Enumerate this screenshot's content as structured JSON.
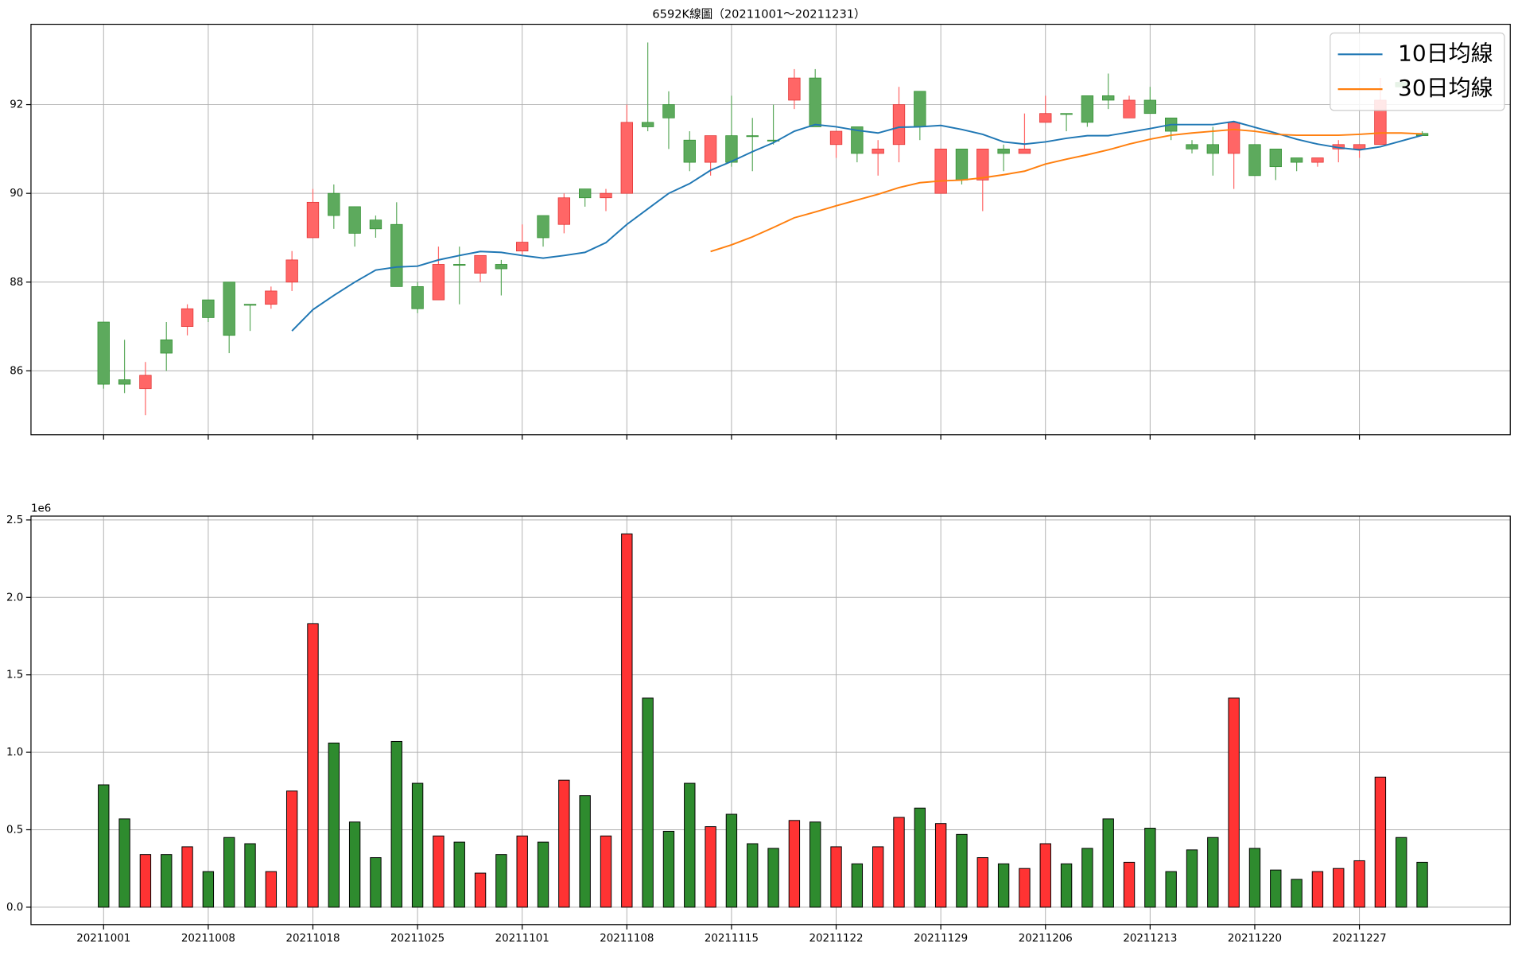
{
  "chart_data": [
    {
      "type": "candlestick",
      "title": "6592K線圖（20211001～20211231）",
      "open": [
        87.1,
        85.8,
        85.6,
        86.7,
        87.0,
        87.6,
        88.0,
        87.5,
        87.5,
        88.0,
        89.0,
        90.0,
        89.7,
        89.4,
        89.3,
        87.9,
        87.6,
        88.4,
        88.2,
        88.4,
        88.7,
        89.5,
        89.3,
        90.1,
        89.9,
        90.0,
        91.6,
        92.0,
        91.2,
        90.7,
        91.3,
        91.3,
        91.2,
        92.1,
        92.6,
        91.1,
        91.5,
        90.9,
        91.1,
        92.3,
        90.0,
        91.0,
        90.3,
        91.0,
        90.9,
        91.6,
        91.8,
        92.2,
        92.2,
        91.7,
        92.1,
        91.7,
        91.1,
        91.1,
        90.9,
        91.1,
        91.0,
        90.8,
        90.7,
        91.0,
        91.0,
        91.1,
        92.5,
        91.35
      ],
      "high": [
        87.1,
        86.7,
        86.2,
        87.1,
        87.5,
        87.6,
        88.0,
        87.5,
        87.9,
        88.7,
        90.1,
        90.2,
        89.7,
        89.5,
        89.8,
        88.0,
        88.8,
        88.8,
        88.6,
        88.5,
        89.3,
        89.5,
        90.0,
        90.1,
        90.1,
        92.0,
        93.4,
        92.3,
        91.4,
        91.3,
        92.2,
        91.7,
        92.0,
        92.8,
        92.8,
        91.4,
        91.5,
        91.2,
        92.4,
        92.3,
        91.0,
        91.0,
        91.0,
        91.1,
        91.8,
        92.2,
        91.8,
        92.2,
        92.7,
        92.2,
        92.4,
        91.7,
        91.2,
        91.5,
        91.6,
        91.1,
        91.0,
        90.8,
        90.8,
        91.2,
        91.1,
        92.6,
        92.5,
        91.4
      ],
      "low": [
        85.6,
        85.5,
        85.0,
        86.0,
        86.8,
        87.1,
        86.4,
        86.9,
        87.4,
        87.8,
        89.0,
        89.2,
        88.8,
        89.0,
        87.9,
        87.3,
        87.6,
        87.5,
        88.0,
        87.7,
        88.6,
        88.8,
        89.1,
        89.7,
        89.6,
        90.0,
        91.4,
        91.0,
        90.5,
        90.4,
        90.6,
        90.5,
        91.1,
        91.9,
        91.5,
        90.8,
        90.7,
        90.4,
        90.7,
        91.2,
        90.0,
        90.2,
        89.6,
        90.5,
        90.9,
        91.6,
        91.4,
        91.5,
        91.9,
        91.7,
        91.8,
        91.2,
        90.9,
        90.4,
        90.1,
        90.4,
        90.3,
        90.5,
        90.6,
        90.7,
        90.8,
        91.1,
        92.4,
        91.3
      ],
      "close": [
        85.7,
        85.7,
        85.9,
        86.4,
        87.4,
        87.2,
        86.8,
        87.5,
        87.8,
        88.5,
        89.8,
        89.5,
        89.1,
        89.2,
        87.9,
        87.4,
        88.4,
        88.4,
        88.6,
        88.3,
        88.9,
        89.0,
        89.9,
        89.9,
        90.0,
        91.6,
        91.5,
        91.7,
        90.7,
        91.3,
        90.7,
        91.3,
        91.2,
        92.6,
        91.5,
        91.4,
        90.9,
        91.0,
        92.0,
        91.5,
        91.0,
        90.3,
        91.0,
        90.9,
        91.0,
        91.8,
        91.8,
        91.6,
        92.1,
        92.1,
        91.8,
        91.4,
        91.0,
        90.9,
        91.6,
        90.4,
        90.6,
        90.7,
        90.8,
        91.1,
        91.1,
        92.1,
        92.4,
        91.3
      ],
      "up_color": "#ff6666",
      "down_color": "#5daa5d",
      "series": [
        {
          "name": "10日均線",
          "color": "#1f77b4",
          "values": [
            null,
            null,
            null,
            null,
            null,
            null,
            null,
            null,
            null,
            86.9,
            87.38,
            87.7,
            88.0,
            88.27,
            88.34,
            88.36,
            88.5,
            88.6,
            88.69,
            88.67,
            88.6,
            88.54,
            88.6,
            88.67,
            88.89,
            89.3,
            89.65,
            90.0,
            90.22,
            90.52,
            90.72,
            90.94,
            91.14,
            91.4,
            91.55,
            91.5,
            91.42,
            91.36,
            91.49,
            91.5,
            91.53,
            91.44,
            91.33,
            91.16,
            91.11,
            91.16,
            91.24,
            91.3,
            91.3,
            91.38,
            91.46,
            91.55,
            91.55,
            91.55,
            91.62,
            91.49,
            91.36,
            91.22,
            91.11,
            91.03,
            90.98,
            91.05,
            91.18,
            91.31
          ]
        },
        {
          "name": "30日均線",
          "color": "#ff7f0e",
          "values": [
            null,
            null,
            null,
            null,
            null,
            null,
            null,
            null,
            null,
            null,
            null,
            null,
            null,
            null,
            null,
            null,
            null,
            null,
            null,
            null,
            null,
            null,
            null,
            null,
            null,
            null,
            null,
            null,
            null,
            88.69,
            88.84,
            89.02,
            89.23,
            89.45,
            89.58,
            89.72,
            89.85,
            89.98,
            90.13,
            90.24,
            90.28,
            90.3,
            90.35,
            90.42,
            90.5,
            90.66,
            90.77,
            90.87,
            90.98,
            91.11,
            91.22,
            91.31,
            91.36,
            91.4,
            91.44,
            91.4,
            91.33,
            91.31,
            91.31,
            91.31,
            91.33,
            91.36,
            91.36,
            91.34
          ]
        }
      ],
      "ylim": [
        84.56,
        93.81
      ],
      "yticks": [
        86,
        88,
        90,
        92
      ],
      "grid": true,
      "legend": "upper right"
    },
    {
      "type": "bar",
      "offset_label": "1e6",
      "categories": [
        "20211001",
        null,
        null,
        null,
        null,
        "20211008",
        null,
        null,
        null,
        null,
        "20211018",
        null,
        null,
        null,
        null,
        "20211025",
        null,
        null,
        null,
        null,
        "20211101",
        null,
        null,
        null,
        null,
        "20211108",
        null,
        null,
        null,
        null,
        "20211115",
        null,
        null,
        null,
        null,
        "20211122",
        null,
        null,
        null,
        null,
        "20211129",
        null,
        null,
        null,
        null,
        "20211206",
        null,
        null,
        null,
        null,
        "20211213",
        null,
        null,
        null,
        null,
        "20211220",
        null,
        null,
        null,
        null,
        "20211227",
        null,
        null,
        null
      ],
      "values": [
        0.79,
        0.57,
        0.34,
        0.34,
        0.39,
        0.23,
        0.45,
        0.41,
        0.23,
        0.75,
        1.83,
        1.06,
        0.55,
        0.32,
        1.07,
        0.8,
        0.46,
        0.42,
        0.22,
        0.34,
        0.46,
        0.42,
        0.82,
        0.72,
        0.46,
        2.41,
        1.35,
        0.49,
        0.8,
        0.52,
        0.6,
        0.41,
        0.38,
        0.56,
        0.55,
        0.39,
        0.28,
        0.39,
        0.58,
        0.64,
        0.54,
        0.47,
        0.32,
        0.28,
        0.25,
        0.41,
        0.28,
        0.38,
        0.57,
        0.29,
        0.51,
        0.23,
        0.37,
        0.45,
        1.35,
        0.38,
        0.24,
        0.18,
        0.23,
        0.25,
        0.3,
        0.84,
        0.45,
        0.29
      ],
      "up_color": "#ff3333",
      "down_color": "#2e8b2e",
      "ylim": [
        -0.1125,
        2.525
      ],
      "yticks": [
        {
          "value": 0,
          "label": "0.0"
        },
        0.5,
        {
          "value": 1,
          "label": "1.0"
        },
        1.5,
        {
          "value": 2,
          "label": "2.0"
        },
        2.5
      ],
      "grid": true
    }
  ]
}
